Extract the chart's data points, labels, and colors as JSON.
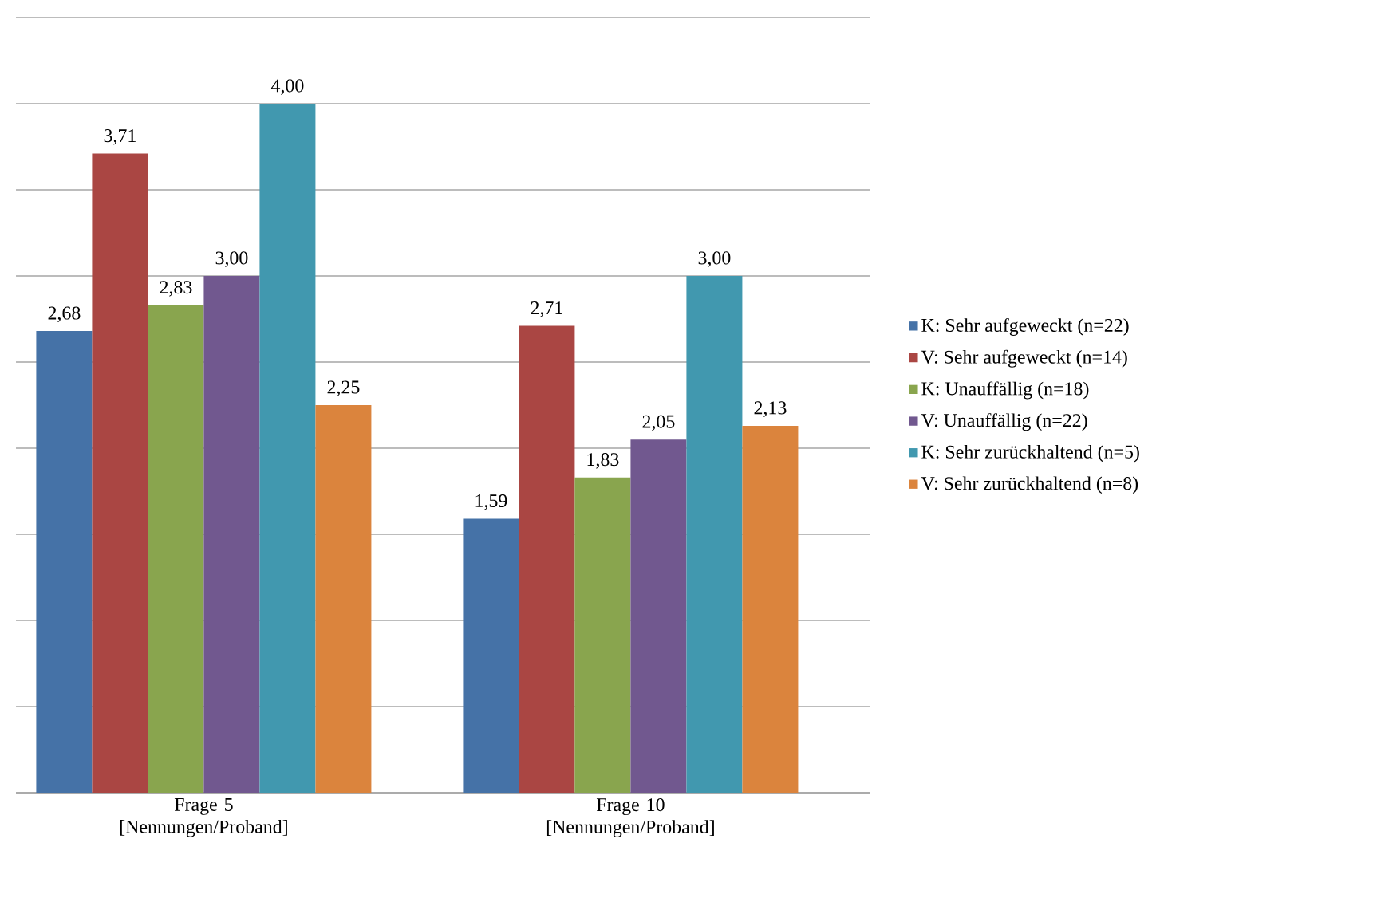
{
  "chart_data": {
    "type": "bar",
    "categories": [
      "Frage 5 [Nennungen/Proband]",
      "Frage 10 [Nennungen/Proband]"
    ],
    "series": [
      {
        "name": "K: Sehr aufgeweckt (n=22)",
        "color": "#4572a7",
        "values": [
          2.68,
          1.59
        ],
        "value_labels": [
          "2,68",
          "1,59"
        ]
      },
      {
        "name": "V: Sehr aufgeweckt (n=14)",
        "color": "#aa4643",
        "values": [
          3.71,
          2.71
        ],
        "value_labels": [
          "3,71",
          "2,71"
        ]
      },
      {
        "name": "K: Unauffällig (n=18)",
        "color": "#89a54e",
        "values": [
          2.83,
          1.83
        ],
        "value_labels": [
          "2,83",
          "1,83"
        ]
      },
      {
        "name": "V: Unauffällig (n=22)",
        "color": "#71588f",
        "values": [
          3.0,
          2.05
        ],
        "value_labels": [
          "3,00",
          "2,05"
        ]
      },
      {
        "name": "K: Sehr zurückhaltend (n=5)",
        "color": "#4198af",
        "values": [
          4.0,
          3.0
        ],
        "value_labels": [
          "4,00",
          "3,00"
        ]
      },
      {
        "name": "V: Sehr zurückhaltend (n=8)",
        "color": "#db843d",
        "values": [
          2.25,
          2.13
        ],
        "value_labels": [
          "2,25",
          "2,13"
        ]
      }
    ],
    "ylim": [
      0,
      4.5
    ],
    "yticks": [
      {
        "value": 0,
        "label": null
      },
      {
        "value": 0.5,
        "label": null
      },
      {
        "value": 1,
        "label": null
      },
      {
        "value": 1.5,
        "label": null
      },
      {
        "value": 2,
        "label": null
      },
      {
        "value": 2.5,
        "label": null
      },
      {
        "value": 3,
        "label": null
      },
      {
        "value": 3.5,
        "label": null
      },
      {
        "value": 4,
        "label": null
      },
      {
        "value": 4.5,
        "label": null
      }
    ],
    "grid": "y",
    "legend": "right",
    "tick_labels": "x"
  }
}
